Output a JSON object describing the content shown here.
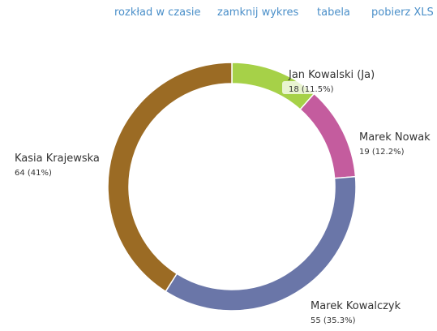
{
  "toolbar": {
    "links": [
      "rozkład w czasie",
      "zamknij wykres",
      "tabela",
      "pobierz XLS"
    ]
  },
  "colors": {
    "link": "#4a8fc9",
    "slices": [
      "#a6d148",
      "#c45c9e",
      "#6a76a8",
      "#9b6b24"
    ]
  },
  "chart_data": {
    "type": "pie",
    "donut": true,
    "slices": [
      {
        "name": "Jan Kowalski (Ja)",
        "value": 18,
        "label": "18 (11.5%)",
        "color": "#a6d148",
        "highlighted": true
      },
      {
        "name": "Marek Nowak",
        "value": 19,
        "label": "19 (12.2%)",
        "color": "#c45c9e"
      },
      {
        "name": "Marek Kowalczyk",
        "value": 55,
        "label": "55 (35.3%)",
        "color": "#6a76a8"
      },
      {
        "name": "Kasia Krajewska",
        "value": 64,
        "label": "64 (41%)",
        "color": "#9b6b24"
      }
    ]
  }
}
